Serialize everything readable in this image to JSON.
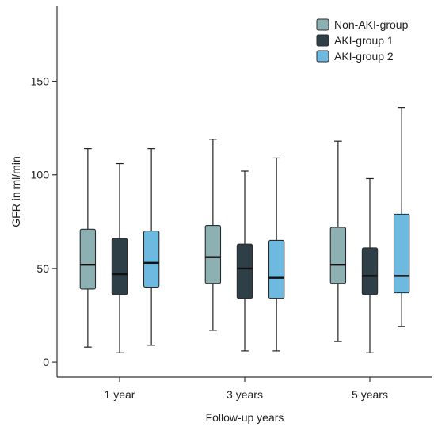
{
  "chart_data": {
    "type": "boxplot",
    "xlabel": "Follow-up years",
    "ylabel": "GFR in ml/min",
    "ylim": [
      -8,
      190
    ],
    "yticks": [
      0,
      50,
      100,
      150
    ],
    "categories": [
      "1 year",
      "3 years",
      "5 years"
    ],
    "legend_position": "top-right",
    "series": [
      {
        "name": "Non-AKI-group",
        "color": "#8db0b3",
        "stats": [
          {
            "min": 8,
            "q1": 39,
            "median": 52,
            "q3": 71,
            "max": 114
          },
          {
            "min": 17,
            "q1": 42,
            "median": 56,
            "q3": 73,
            "max": 119
          },
          {
            "min": 11,
            "q1": 42,
            "median": 52,
            "q3": 72,
            "max": 118
          }
        ]
      },
      {
        "name": "AKI-group 1",
        "color": "#2e3f47",
        "stats": [
          {
            "min": 5,
            "q1": 36,
            "median": 47,
            "q3": 66,
            "max": 106
          },
          {
            "min": 6,
            "q1": 34,
            "median": 50,
            "q3": 63,
            "max": 102
          },
          {
            "min": 5,
            "q1": 36,
            "median": 46,
            "q3": 61,
            "max": 98
          }
        ]
      },
      {
        "name": "AKI-group 2",
        "color": "#6eb9df",
        "stats": [
          {
            "min": 9,
            "q1": 40,
            "median": 53,
            "q3": 70,
            "max": 114
          },
          {
            "min": 6,
            "q1": 34,
            "median": 45,
            "q3": 65,
            "max": 109
          },
          {
            "min": 19,
            "q1": 37,
            "median": 46,
            "q3": 79,
            "max": 136
          }
        ]
      }
    ]
  }
}
